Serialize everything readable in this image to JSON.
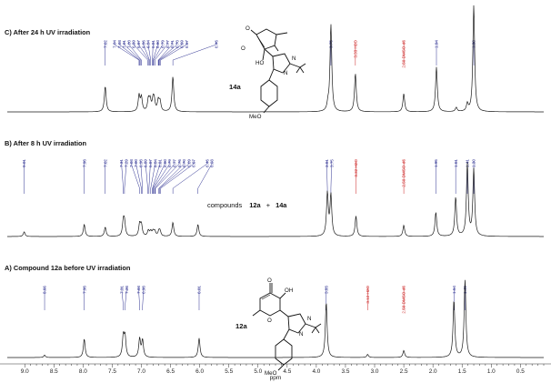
{
  "chart_data": {
    "type": "line",
    "xlabel": "ppm",
    "xlim": [
      9.3,
      0.1
    ],
    "x_reversed": true,
    "xticks": [
      "9.0",
      "8.5",
      "8.0",
      "7.5",
      "7.0",
      "6.5",
      "6.0",
      "5.5",
      "5.0",
      "4.5",
      "4.0",
      "3.5",
      "3.0",
      "2.5",
      "2.0",
      "1.5",
      "1.0",
      "0.5"
    ],
    "panels": [
      {
        "id": "C",
        "title": "C) After 24 h UV irradiation",
        "compound": "14a",
        "labels": [
          {
            "text": "7.62",
            "ppm": 7.62,
            "color": "#2e3192"
          },
          {
            "text": "7.04",
            "ppm": 7.04,
            "color": "#2e3192"
          },
          {
            "text": "7.03",
            "ppm": 7.03,
            "color": "#2e3192"
          },
          {
            "text": "7.01",
            "ppm": 7.01,
            "color": "#2e3192"
          },
          {
            "text": "7.00",
            "ppm": 7.0,
            "color": "#2e3192"
          },
          {
            "text": "6.89",
            "ppm": 6.89,
            "color": "#2e3192"
          },
          {
            "text": "6.87",
            "ppm": 6.87,
            "color": "#2e3192"
          },
          {
            "text": "6.86",
            "ppm": 6.86,
            "color": "#2e3192"
          },
          {
            "text": "6.84",
            "ppm": 6.84,
            "color": "#2e3192"
          },
          {
            "text": "6.81",
            "ppm": 6.81,
            "color": "#2e3192"
          },
          {
            "text": "6.80",
            "ppm": 6.8,
            "color": "#2e3192"
          },
          {
            "text": "6.79",
            "ppm": 6.79,
            "color": "#2e3192"
          },
          {
            "text": "6.77",
            "ppm": 6.77,
            "color": "#2e3192"
          },
          {
            "text": "6.71",
            "ppm": 6.71,
            "color": "#2e3192"
          },
          {
            "text": "6.70",
            "ppm": 6.7,
            "color": "#2e3192"
          },
          {
            "text": "6.69",
            "ppm": 6.69,
            "color": "#2e3192"
          },
          {
            "text": "6.67",
            "ppm": 6.67,
            "color": "#2e3192"
          },
          {
            "text": "6.46",
            "ppm": 6.46,
            "color": "#2e3192"
          },
          {
            "text": "3.75",
            "ppm": 3.75,
            "color": "#2e3192"
          },
          {
            "text": "3.33 H2O",
            "ppm": 3.33,
            "color": "#cc2222"
          },
          {
            "text": "2.50 DMSO-d6",
            "ppm": 2.5,
            "color": "#cc2222"
          },
          {
            "text": "1.94",
            "ppm": 1.94,
            "color": "#2e3192"
          },
          {
            "text": "1.30",
            "ppm": 1.3,
            "color": "#2e3192"
          }
        ],
        "peaks": [
          {
            "ppm": 7.62,
            "height": 0.24
          },
          {
            "ppm": 7.04,
            "height": 0.15
          },
          {
            "ppm": 7.0,
            "height": 0.13
          },
          {
            "ppm": 6.88,
            "height": 0.11
          },
          {
            "ppm": 6.85,
            "height": 0.1
          },
          {
            "ppm": 6.8,
            "height": 0.1
          },
          {
            "ppm": 6.78,
            "height": 0.09
          },
          {
            "ppm": 6.71,
            "height": 0.1
          },
          {
            "ppm": 6.68,
            "height": 0.09
          },
          {
            "ppm": 6.46,
            "height": 0.33
          },
          {
            "ppm": 3.8,
            "height": 0.06
          },
          {
            "ppm": 3.75,
            "height": 0.82
          },
          {
            "ppm": 3.33,
            "height": 0.36
          },
          {
            "ppm": 2.5,
            "height": 0.17
          },
          {
            "ppm": 1.94,
            "height": 0.42
          },
          {
            "ppm": 1.6,
            "height": 0.04
          },
          {
            "ppm": 1.41,
            "height": 0.07
          },
          {
            "ppm": 1.3,
            "height": 1.0
          }
        ]
      },
      {
        "id": "B",
        "title": "B) After 8 h UV irradiation",
        "compound_text": "compounds",
        "compound_a": "12a",
        "compound_plus": "+",
        "compound_b": "14a",
        "labels": [
          {
            "text": "9.01",
            "ppm": 9.01,
            "color": "#2e3192"
          },
          {
            "text": "7.98",
            "ppm": 7.98,
            "color": "#2e3192"
          },
          {
            "text": "7.62",
            "ppm": 7.62,
            "color": "#2e3192"
          },
          {
            "text": "7.31",
            "ppm": 7.31,
            "color": "#2e3192"
          },
          {
            "text": "7.29",
            "ppm": 7.29,
            "color": "#2e3192"
          },
          {
            "text": "7.03",
            "ppm": 7.03,
            "color": "#2e3192"
          },
          {
            "text": "7.00",
            "ppm": 7.0,
            "color": "#2e3192"
          },
          {
            "text": "6.98",
            "ppm": 6.98,
            "color": "#2e3192"
          },
          {
            "text": "6.89",
            "ppm": 6.89,
            "color": "#2e3192"
          },
          {
            "text": "6.87",
            "ppm": 6.87,
            "color": "#2e3192"
          },
          {
            "text": "6.84",
            "ppm": 6.84,
            "color": "#2e3192"
          },
          {
            "text": "6.81",
            "ppm": 6.81,
            "color": "#2e3192"
          },
          {
            "text": "6.80",
            "ppm": 6.8,
            "color": "#2e3192"
          },
          {
            "text": "6.79",
            "ppm": 6.79,
            "color": "#2e3192"
          },
          {
            "text": "6.77",
            "ppm": 6.77,
            "color": "#2e3192"
          },
          {
            "text": "6.76",
            "ppm": 6.76,
            "color": "#2e3192"
          },
          {
            "text": "6.70",
            "ppm": 6.7,
            "color": "#2e3192"
          },
          {
            "text": "6.69",
            "ppm": 6.69,
            "color": "#2e3192"
          },
          {
            "text": "6.67",
            "ppm": 6.67,
            "color": "#2e3192"
          },
          {
            "text": "6.46",
            "ppm": 6.46,
            "color": "#2e3192"
          },
          {
            "text": "6.03",
            "ppm": 6.03,
            "color": "#2e3192"
          },
          {
            "text": "3.81",
            "ppm": 3.81,
            "color": "#2e3192"
          },
          {
            "text": "3.75",
            "ppm": 3.75,
            "color": "#2e3192"
          },
          {
            "text": "3.32 H2O",
            "ppm": 3.32,
            "color": "#cc2222"
          },
          {
            "text": "2.50 DMSO-d6",
            "ppm": 2.5,
            "color": "#cc2222"
          },
          {
            "text": "1.95",
            "ppm": 1.95,
            "color": "#2e3192"
          },
          {
            "text": "1.61",
            "ppm": 1.61,
            "color": "#2e3192"
          },
          {
            "text": "1.41",
            "ppm": 1.41,
            "color": "#2e3192"
          },
          {
            "text": "1.30",
            "ppm": 1.3,
            "color": "#2e3192"
          }
        ],
        "peaks": [
          {
            "ppm": 9.01,
            "height": 0.05
          },
          {
            "ppm": 7.98,
            "height": 0.13
          },
          {
            "ppm": 7.62,
            "height": 0.1
          },
          {
            "ppm": 7.31,
            "height": 0.15
          },
          {
            "ppm": 7.29,
            "height": 0.14
          },
          {
            "ppm": 7.03,
            "height": 0.13
          },
          {
            "ppm": 7.0,
            "height": 0.12
          },
          {
            "ppm": 6.88,
            "height": 0.06
          },
          {
            "ppm": 6.84,
            "height": 0.05
          },
          {
            "ppm": 6.8,
            "height": 0.05
          },
          {
            "ppm": 6.77,
            "height": 0.05
          },
          {
            "ppm": 6.7,
            "height": 0.05
          },
          {
            "ppm": 6.68,
            "height": 0.05
          },
          {
            "ppm": 6.46,
            "height": 0.15
          },
          {
            "ppm": 6.03,
            "height": 0.13
          },
          {
            "ppm": 3.81,
            "height": 0.46
          },
          {
            "ppm": 3.75,
            "height": 0.44
          },
          {
            "ppm": 3.32,
            "height": 0.22
          },
          {
            "ppm": 2.5,
            "height": 0.12
          },
          {
            "ppm": 1.95,
            "height": 0.26
          },
          {
            "ppm": 1.61,
            "height": 0.42
          },
          {
            "ppm": 1.41,
            "height": 0.78
          },
          {
            "ppm": 1.3,
            "height": 0.72
          }
        ]
      },
      {
        "id": "A",
        "title": "A) Compound 12a before UV irradiation",
        "compound": "12a",
        "labels": [
          {
            "text": "8.66",
            "ppm": 8.66,
            "color": "#2e3192"
          },
          {
            "text": "7.98",
            "ppm": 7.98,
            "color": "#2e3192"
          },
          {
            "text": "7.31",
            "ppm": 7.31,
            "color": "#2e3192"
          },
          {
            "text": "7.28",
            "ppm": 7.28,
            "color": "#2e3192"
          },
          {
            "text": "7.03",
            "ppm": 7.03,
            "color": "#2e3192"
          },
          {
            "text": "6.98",
            "ppm": 6.98,
            "color": "#2e3192"
          },
          {
            "text": "6.01",
            "ppm": 6.01,
            "color": "#2e3192"
          },
          {
            "text": "3.83",
            "ppm": 3.83,
            "color": "#2e3192"
          },
          {
            "text": "3.12 H2O",
            "ppm": 3.12,
            "color": "#cc2222"
          },
          {
            "text": "2.50 DMSO-d6",
            "ppm": 2.5,
            "color": "#cc2222"
          },
          {
            "text": "1.64",
            "ppm": 1.64,
            "color": "#2e3192"
          },
          {
            "text": "1.45",
            "ppm": 1.45,
            "color": "#2e3192"
          }
        ],
        "peaks": [
          {
            "ppm": 8.66,
            "height": 0.03
          },
          {
            "ppm": 7.98,
            "height": 0.24
          },
          {
            "ppm": 7.31,
            "height": 0.27
          },
          {
            "ppm": 7.28,
            "height": 0.25
          },
          {
            "ppm": 7.03,
            "height": 0.24
          },
          {
            "ppm": 6.98,
            "height": 0.22
          },
          {
            "ppm": 6.01,
            "height": 0.25
          },
          {
            "ppm": 3.83,
            "height": 0.72
          },
          {
            "ppm": 3.12,
            "height": 0.04
          },
          {
            "ppm": 2.5,
            "height": 0.09
          },
          {
            "ppm": 1.64,
            "height": 0.74
          },
          {
            "ppm": 1.45,
            "height": 1.0
          }
        ]
      }
    ]
  },
  "structures": {
    "s14a": {
      "O_top": "O",
      "O_left": "O",
      "HO": "HO",
      "N": "N",
      "N2": "N",
      "MeO": "MeO"
    },
    "s12a": {
      "O_top": "O",
      "OH": "OH",
      "O_ring": "O",
      "N": "N",
      "N2": "N",
      "MeO": "MeO"
    }
  },
  "colors": {
    "spectrum": "#1a1a1a",
    "label_blue": "#2e3192",
    "label_red": "#cc2222"
  }
}
